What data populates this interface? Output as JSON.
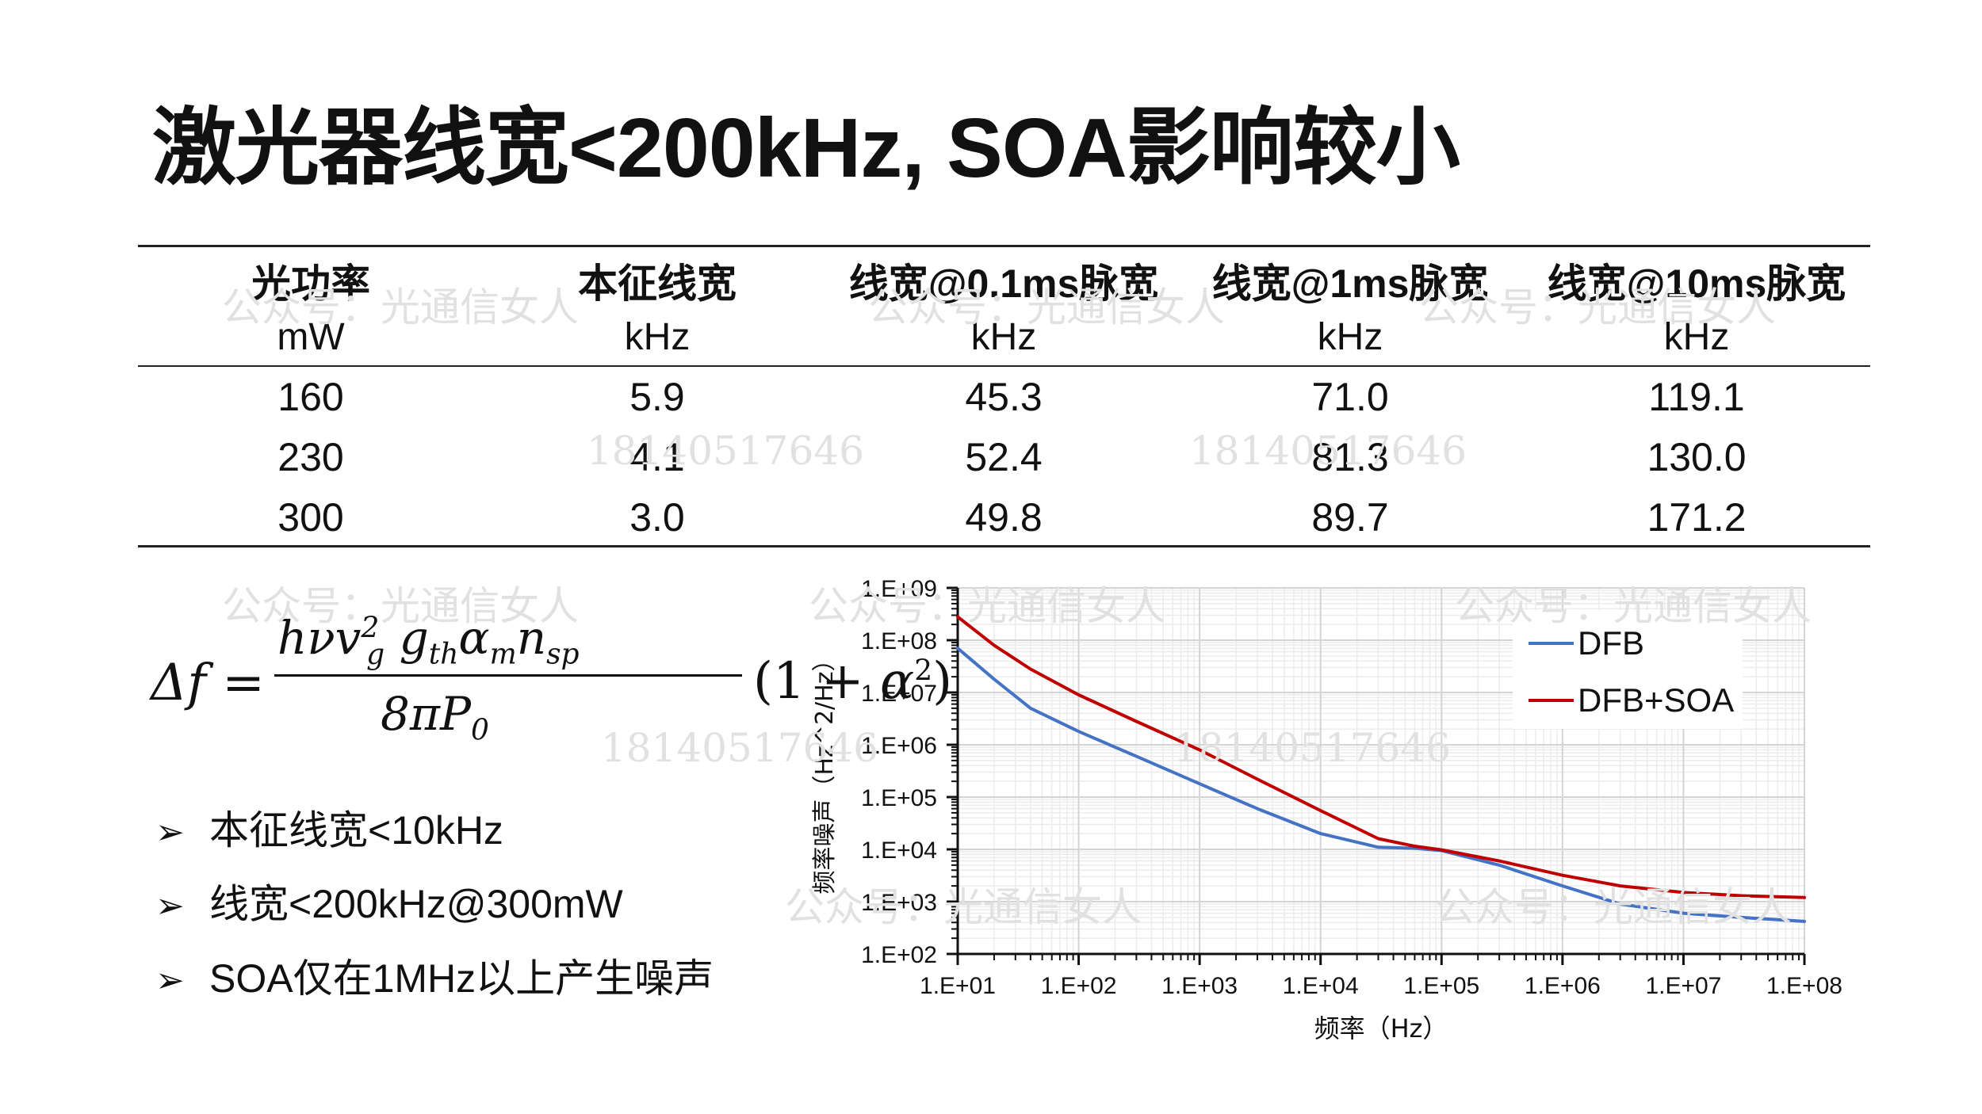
{
  "title": "激光器线宽<200kHz, SOA影响较小",
  "table": {
    "headers": [
      "光功率",
      "本征线宽",
      "线宽@0.1ms脉宽",
      "线宽@1ms脉宽",
      "线宽@10ms脉宽"
    ],
    "units": [
      "mW",
      "kHz",
      "kHz",
      "kHz",
      "kHz"
    ],
    "rows": [
      [
        "160",
        "5.9",
        "45.3",
        "71.0",
        "119.1"
      ],
      [
        "230",
        "4.1",
        "52.4",
        "81.3",
        "130.0"
      ],
      [
        "300",
        "3.0",
        "49.8",
        "89.7",
        "171.2"
      ]
    ]
  },
  "formula": {
    "lhs": "Δf =",
    "numerator": "hνv_g² g_th α_m n_sp",
    "denominator": "8πP₀",
    "factor": "(1 + α²)"
  },
  "bullets": [
    {
      "marker": "➢",
      "text": "本征线宽<10kHz"
    },
    {
      "marker": "➢",
      "text": "线宽<200kHz@300mW"
    },
    {
      "marker": "➢",
      "text": "SOA仅在1MHz以上产生噪声"
    }
  ],
  "watermarks": {
    "account": "公众号：光通信女人",
    "phone": "18140517646"
  },
  "chart_data": {
    "type": "line",
    "title": "",
    "xlabel": "频率（Hz）",
    "ylabel": "频率噪声（Hz^2/Hz）",
    "xscale": "log",
    "yscale": "log",
    "xlim": [
      10,
      100000000
    ],
    "ylim": [
      100,
      1000000000
    ],
    "xticks": [
      "1.E+01",
      "1.E+02",
      "1.E+03",
      "1.E+04",
      "1.E+05",
      "1.E+06",
      "1.E+07",
      "1.E+08"
    ],
    "yticks": [
      "1.E+02",
      "1.E+03",
      "1.E+04",
      "1.E+05",
      "1.E+06",
      "1.E+07",
      "1.E+08",
      "1.E+09"
    ],
    "legend_position": "top-right",
    "grid": true,
    "series": [
      {
        "name": "DFB",
        "color": "#4472C4",
        "x": [
          10,
          20,
          40,
          100,
          300,
          1000,
          3000,
          10000,
          30000,
          60000,
          100000,
          300000,
          1000000,
          3000000,
          10000000,
          30000000,
          100000000
        ],
        "y": [
          70000000,
          18000000,
          5000000,
          1800000,
          600000,
          180000,
          60000,
          20000,
          11000,
          10500,
          9500,
          5000,
          2000,
          900,
          600,
          500,
          420
        ]
      },
      {
        "name": "DFB+SOA",
        "color": "#C00000",
        "x": [
          10,
          20,
          40,
          100,
          300,
          1000,
          3000,
          10000,
          30000,
          60000,
          100000,
          300000,
          1000000,
          3000000,
          10000000,
          30000000,
          100000000
        ],
        "y": [
          280000000,
          80000000,
          28000000,
          9000000,
          2800000,
          800000,
          220000,
          55000,
          16000,
          11500,
          9800,
          6000,
          3200,
          2000,
          1500,
          1300,
          1200
        ]
      }
    ]
  }
}
